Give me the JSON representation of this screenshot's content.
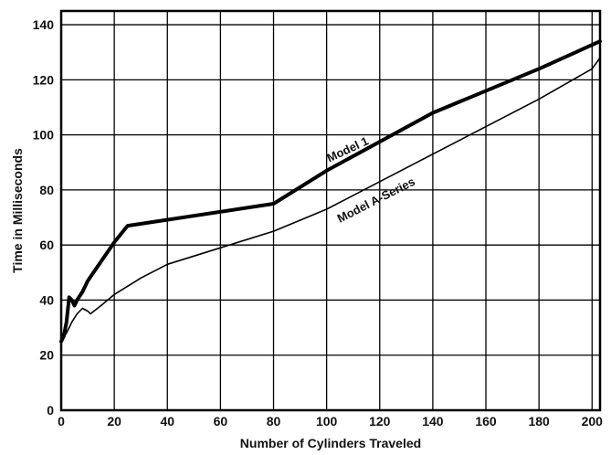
{
  "chart_data": {
    "type": "line",
    "title": "",
    "xlabel": "Number of Cylinders Traveled",
    "ylabel": "Time in Milliseconds",
    "xlim": [
      0,
      203
    ],
    "ylim": [
      0,
      145
    ],
    "x_ticks": [
      0,
      20,
      40,
      60,
      80,
      100,
      120,
      140,
      160,
      180,
      200
    ],
    "y_ticks": [
      0,
      20,
      40,
      60,
      80,
      100,
      120,
      140
    ],
    "grid": true,
    "legend": "none (series labeled inline)",
    "series": [
      {
        "name": "Model 1",
        "color": "#000000",
        "points": [
          [
            0,
            25
          ],
          [
            1,
            27
          ],
          [
            2,
            32
          ],
          [
            3,
            41
          ],
          [
            4,
            40
          ],
          [
            5,
            38
          ],
          [
            6,
            40
          ],
          [
            8,
            43
          ],
          [
            10,
            47
          ],
          [
            15,
            54
          ],
          [
            20,
            61
          ],
          [
            25,
            67
          ],
          [
            80,
            75
          ],
          [
            100,
            87
          ],
          [
            140,
            108
          ],
          [
            180,
            124
          ],
          [
            203,
            134
          ]
        ]
      },
      {
        "name": "Model A-Series",
        "color": "#000000",
        "points": [
          [
            0,
            25
          ],
          [
            2,
            28
          ],
          [
            4,
            32
          ],
          [
            6,
            35
          ],
          [
            8,
            37
          ],
          [
            10,
            36
          ],
          [
            11,
            35
          ],
          [
            15,
            38
          ],
          [
            20,
            42
          ],
          [
            30,
            48
          ],
          [
            40,
            53
          ],
          [
            60,
            59
          ],
          [
            80,
            65
          ],
          [
            100,
            73
          ],
          [
            140,
            93
          ],
          [
            180,
            113
          ],
          [
            200,
            124
          ],
          [
            203,
            128
          ]
        ]
      }
    ]
  }
}
